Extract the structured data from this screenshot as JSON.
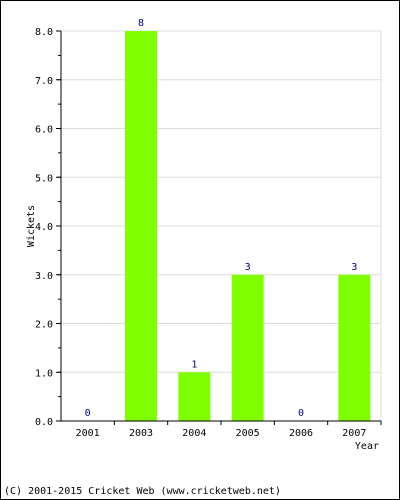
{
  "chart_data": {
    "type": "bar",
    "title": "",
    "xlabel": "Year",
    "ylabel": "Wickets",
    "categories": [
      "2001",
      "2003",
      "2004",
      "2005",
      "2006",
      "2007"
    ],
    "values": [
      0,
      8,
      1,
      3,
      0,
      3
    ],
    "data_labels": [
      "0",
      "8",
      "1",
      "3",
      "0",
      "3"
    ],
    "yticks": [
      "0.0",
      "1.0",
      "2.0",
      "3.0",
      "4.0",
      "5.0",
      "6.0",
      "7.0",
      "8.0"
    ],
    "ylim": [
      0,
      8
    ],
    "grid": true,
    "bar_color": "#7fff00",
    "label_color": "#00008b"
  },
  "footer": {
    "text": "(C) 2001-2015 Cricket Web (www.cricketweb.net)"
  }
}
